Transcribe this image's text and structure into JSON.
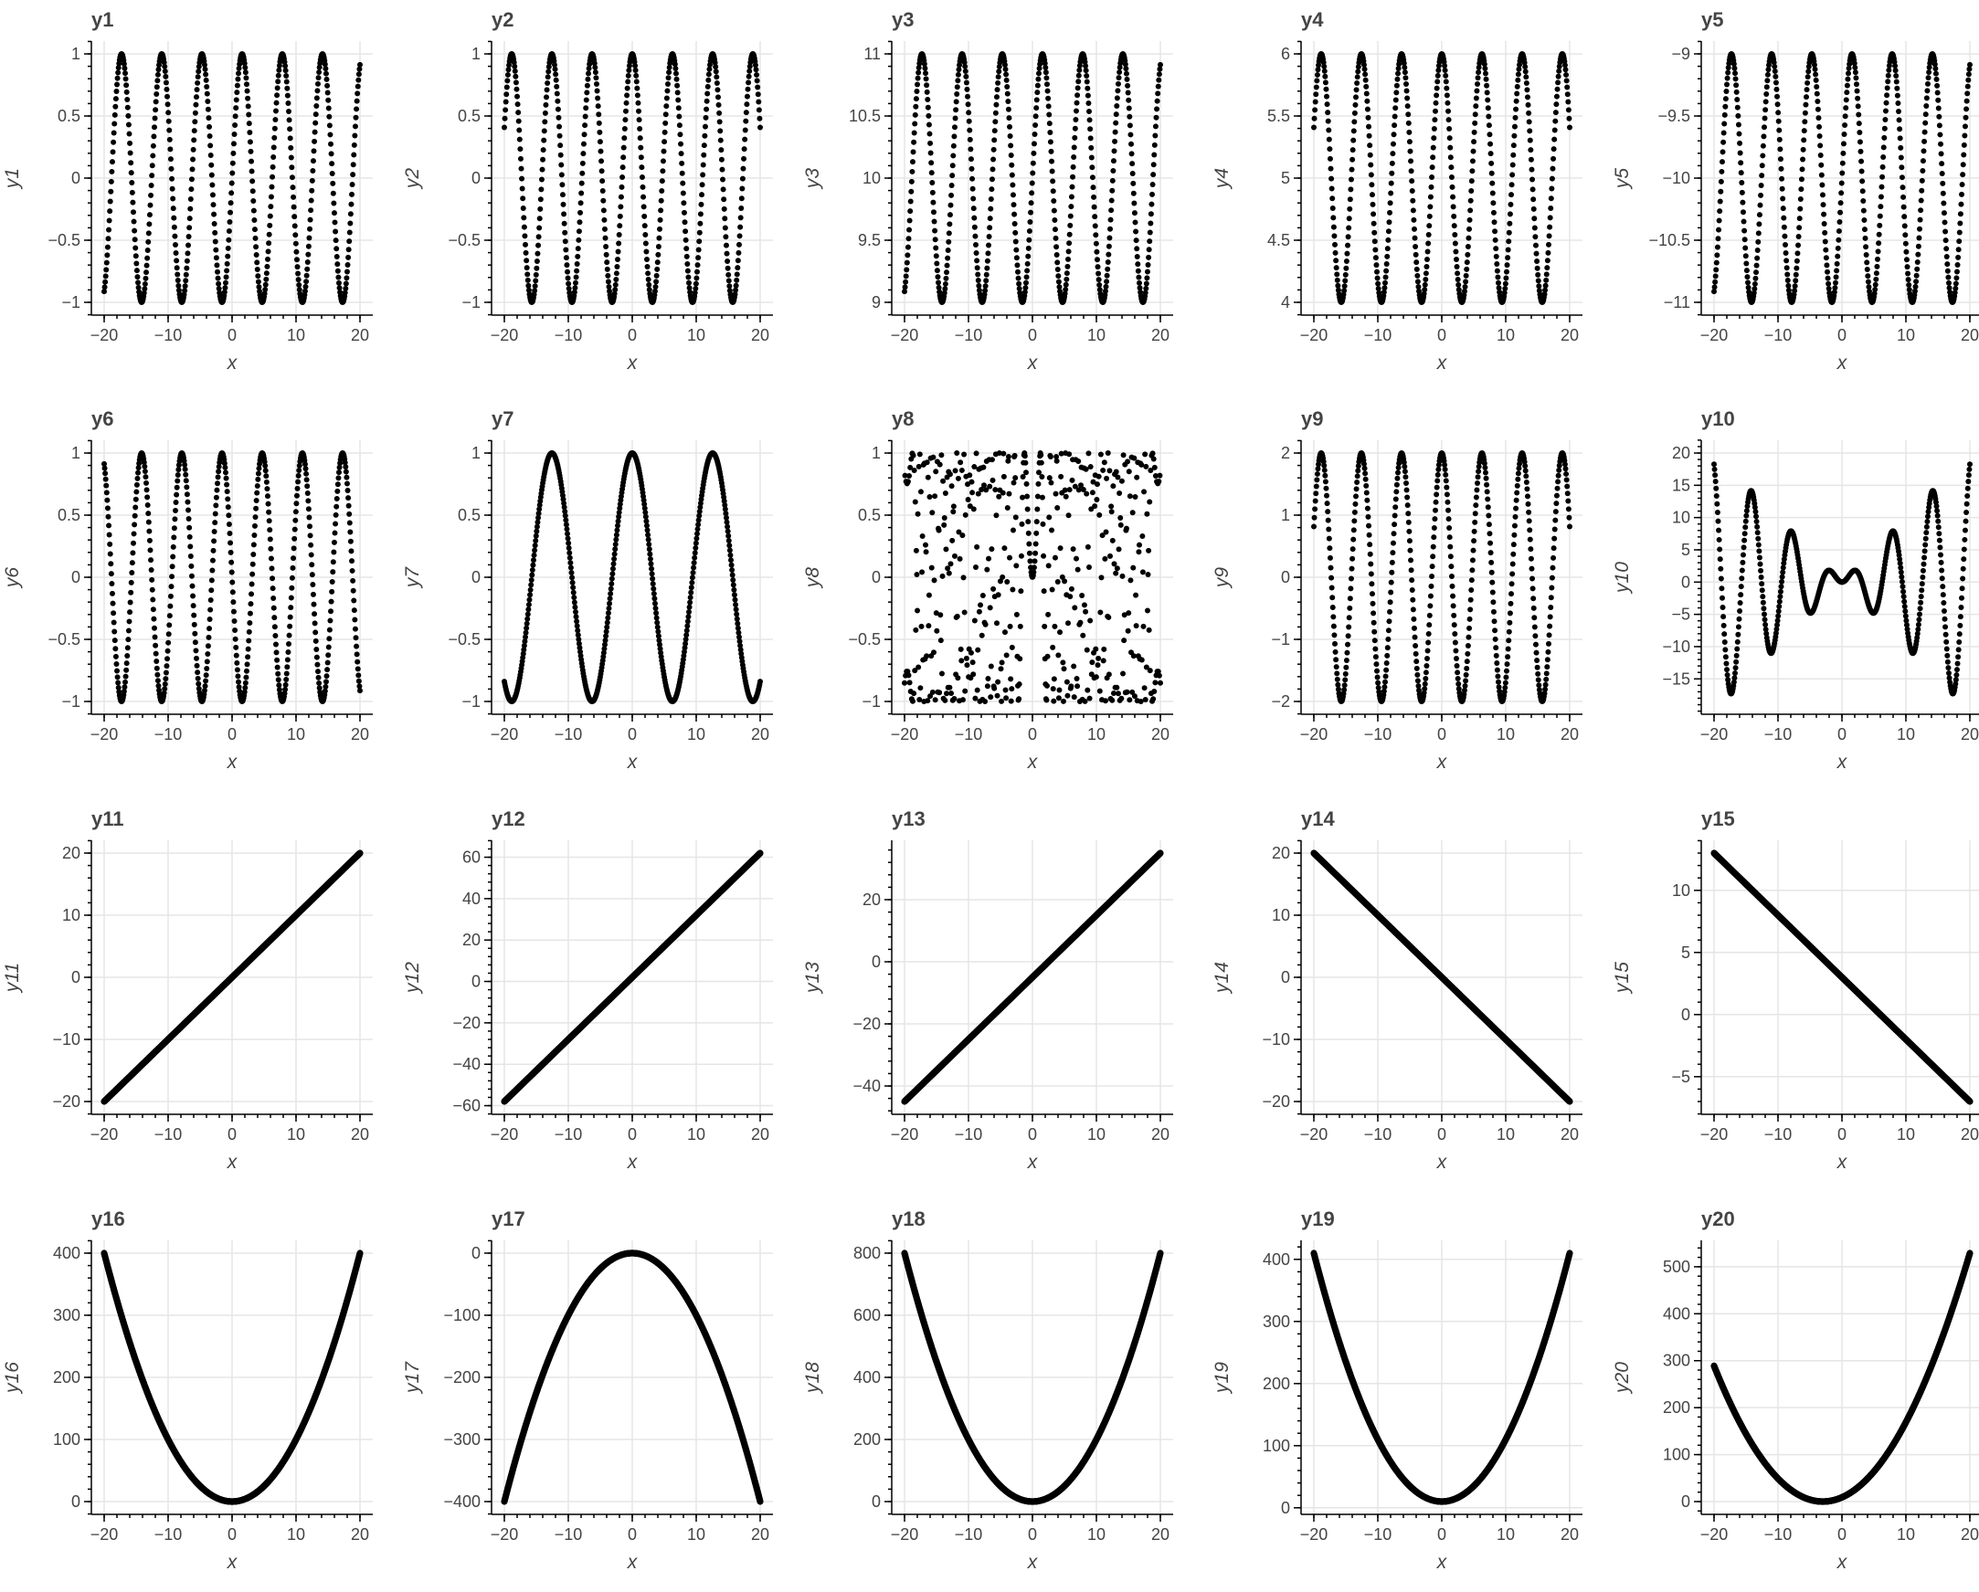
{
  "chart_data": [
    {
      "type": "scatter",
      "title": "y1",
      "xlabel": "x",
      "ylabel": "y1",
      "func": "sin",
      "xlim": [
        -20,
        20
      ],
      "ylim": [
        -1,
        1
      ],
      "xticks": [
        -20,
        -10,
        0,
        10,
        20
      ],
      "yticks": [
        -1,
        -0.5,
        0,
        0.5,
        1
      ],
      "ytick_labels": [
        "−1",
        "−0.5",
        "0",
        "0.5",
        "1"
      ]
    },
    {
      "type": "scatter",
      "title": "y2",
      "xlabel": "x",
      "ylabel": "y2",
      "func": "cos",
      "xlim": [
        -20,
        20
      ],
      "ylim": [
        -1,
        1
      ],
      "xticks": [
        -20,
        -10,
        0,
        10,
        20
      ],
      "yticks": [
        -1,
        -0.5,
        0,
        0.5,
        1
      ],
      "ytick_labels": [
        "−1",
        "−0.5",
        "0",
        "0.5",
        "1"
      ]
    },
    {
      "type": "scatter",
      "title": "y3",
      "xlabel": "x",
      "ylabel": "y3",
      "func": "sin+10",
      "xlim": [
        -20,
        20
      ],
      "ylim": [
        9,
        11
      ],
      "xticks": [
        -20,
        -10,
        0,
        10,
        20
      ],
      "yticks": [
        9,
        9.5,
        10,
        10.5,
        11
      ],
      "ytick_labels": [
        "9",
        "9.5",
        "10",
        "10.5",
        "11"
      ]
    },
    {
      "type": "scatter",
      "title": "y4",
      "xlabel": "x",
      "ylabel": "y4",
      "func": "cos+5",
      "xlim": [
        -20,
        20
      ],
      "ylim": [
        4,
        6
      ],
      "xticks": [
        -20,
        -10,
        0,
        10,
        20
      ],
      "yticks": [
        4,
        4.5,
        5,
        5.5,
        6
      ],
      "ytick_labels": [
        "4",
        "4.5",
        "5",
        "5.5",
        "6"
      ]
    },
    {
      "type": "scatter",
      "title": "y5",
      "xlabel": "x",
      "ylabel": "y5",
      "func": "sin-10",
      "xlim": [
        -20,
        20
      ],
      "ylim": [
        -11,
        -9
      ],
      "xticks": [
        -20,
        -10,
        0,
        10,
        20
      ],
      "yticks": [
        -11,
        -10.5,
        -10,
        -9.5,
        -9
      ],
      "ytick_labels": [
        "−11",
        "−10.5",
        "−10",
        "−9.5",
        "−9"
      ]
    },
    {
      "type": "scatter",
      "title": "y6",
      "xlabel": "x",
      "ylabel": "y6",
      "func": "-sin",
      "xlim": [
        -20,
        20
      ],
      "ylim": [
        -1,
        1
      ],
      "xticks": [
        -20,
        -10,
        0,
        10,
        20
      ],
      "yticks": [
        -1,
        -0.5,
        0,
        0.5,
        1
      ],
      "ytick_labels": [
        "−1",
        "−0.5",
        "0",
        "0.5",
        "1"
      ]
    },
    {
      "type": "scatter",
      "title": "y7",
      "xlabel": "x",
      "ylabel": "y7",
      "func": "cos(x/2)",
      "xlim": [
        -20,
        20
      ],
      "ylim": [
        -1,
        1
      ],
      "xticks": [
        -20,
        -10,
        0,
        10,
        20
      ],
      "yticks": [
        -1,
        -0.5,
        0,
        0.5,
        1
      ],
      "ytick_labels": [
        "−1",
        "−0.5",
        "0",
        "0.5",
        "1"
      ]
    },
    {
      "type": "scatter",
      "title": "y8",
      "xlabel": "x",
      "ylabel": "y8",
      "func": "sin(x^2)",
      "xlim": [
        -20,
        20
      ],
      "ylim": [
        -1,
        1
      ],
      "xticks": [
        -20,
        -10,
        0,
        10,
        20
      ],
      "yticks": [
        -1,
        -0.5,
        0,
        0.5,
        1
      ],
      "ytick_labels": [
        "−1",
        "−0.5",
        "0",
        "0.5",
        "1"
      ]
    },
    {
      "type": "scatter",
      "title": "y9",
      "xlabel": "x",
      "ylabel": "y9",
      "func": "2cos",
      "xlim": [
        -20,
        20
      ],
      "ylim": [
        -2,
        2
      ],
      "xticks": [
        -20,
        -10,
        0,
        10,
        20
      ],
      "yticks": [
        -2,
        -1,
        0,
        1,
        2
      ],
      "ytick_labels": [
        "−2",
        "−1",
        "0",
        "1",
        "2"
      ]
    },
    {
      "type": "scatter",
      "title": "y10",
      "xlabel": "x",
      "ylabel": "y10",
      "func": "x*sin(x)",
      "xlim": [
        -20,
        20
      ],
      "ylim": [
        -18.5,
        20
      ],
      "xticks": [
        -20,
        -10,
        0,
        10,
        20
      ],
      "yticks": [
        -15,
        -10,
        -5,
        0,
        5,
        10,
        15,
        20
      ],
      "ytick_labels": [
        "−15",
        "−10",
        "−5",
        "0",
        "5",
        "10",
        "15",
        "20"
      ]
    },
    {
      "type": "line",
      "title": "y11",
      "xlabel": "x",
      "ylabel": "y11",
      "func": "x",
      "xlim": [
        -20,
        20
      ],
      "ylim": [
        -20,
        20
      ],
      "xticks": [
        -20,
        -10,
        0,
        10,
        20
      ],
      "yticks": [
        -20,
        -10,
        0,
        10,
        20
      ],
      "ytick_labels": [
        "−20",
        "−10",
        "0",
        "10",
        "20"
      ]
    },
    {
      "type": "line",
      "title": "y12",
      "xlabel": "x",
      "ylabel": "y12",
      "func": "3x+2",
      "xlim": [
        -20,
        20
      ],
      "ylim": [
        -58,
        62
      ],
      "xticks": [
        -20,
        -10,
        0,
        10,
        20
      ],
      "yticks": [
        -60,
        -40,
        -20,
        0,
        20,
        40,
        60
      ],
      "ytick_labels": [
        "−60",
        "−40",
        "−20",
        "0",
        "20",
        "40",
        "60"
      ]
    },
    {
      "type": "line",
      "title": "y13",
      "xlabel": "x",
      "ylabel": "y13",
      "func": "2x-5",
      "xlim": [
        -20,
        20
      ],
      "ylim": [
        -45,
        35
      ],
      "xticks": [
        -20,
        -10,
        0,
        10,
        20
      ],
      "yticks": [
        -40,
        -20,
        0,
        20
      ],
      "ytick_labels": [
        "−40",
        "−20",
        "0",
        "20"
      ]
    },
    {
      "type": "line",
      "title": "y14",
      "xlabel": "x",
      "ylabel": "y14",
      "func": "-x",
      "xlim": [
        -20,
        20
      ],
      "ylim": [
        -20,
        20
      ],
      "xticks": [
        -20,
        -10,
        0,
        10,
        20
      ],
      "yticks": [
        -20,
        -10,
        0,
        10,
        20
      ],
      "ytick_labels": [
        "−20",
        "−10",
        "0",
        "10",
        "20"
      ]
    },
    {
      "type": "line",
      "title": "y15",
      "xlabel": "x",
      "ylabel": "y15",
      "func": "-0.5x+3",
      "xlim": [
        -20,
        20
      ],
      "ylim": [
        -7,
        13
      ],
      "xticks": [
        -20,
        -10,
        0,
        10,
        20
      ],
      "yticks": [
        -5,
        0,
        5,
        10
      ],
      "ytick_labels": [
        "−5",
        "0",
        "5",
        "10"
      ]
    },
    {
      "type": "line",
      "title": "y16",
      "xlabel": "x",
      "ylabel": "y16",
      "func": "x^2",
      "xlim": [
        -20,
        20
      ],
      "ylim": [
        0,
        400
      ],
      "xticks": [
        -20,
        -10,
        0,
        10,
        20
      ],
      "yticks": [
        0,
        100,
        200,
        300,
        400
      ],
      "ytick_labels": [
        "0",
        "100",
        "200",
        "300",
        "400"
      ]
    },
    {
      "type": "line",
      "title": "y17",
      "xlabel": "x",
      "ylabel": "y17",
      "func": "-x^2",
      "xlim": [
        -20,
        20
      ],
      "ylim": [
        -400,
        0
      ],
      "xticks": [
        -20,
        -10,
        0,
        10,
        20
      ],
      "yticks": [
        -400,
        -300,
        -200,
        -100,
        0
      ],
      "ytick_labels": [
        "−400",
        "−300",
        "−200",
        "−100",
        "0"
      ]
    },
    {
      "type": "line",
      "title": "y18",
      "xlabel": "x",
      "ylabel": "y18",
      "func": "2x^2",
      "xlim": [
        -20,
        20
      ],
      "ylim": [
        0,
        800
      ],
      "xticks": [
        -20,
        -10,
        0,
        10,
        20
      ],
      "yticks": [
        0,
        200,
        400,
        600,
        800
      ],
      "ytick_labels": [
        "0",
        "200",
        "400",
        "600",
        "800"
      ]
    },
    {
      "type": "line",
      "title": "y19",
      "xlabel": "x",
      "ylabel": "y19",
      "func": "x^2+10",
      "xlim": [
        -20,
        20
      ],
      "ylim": [
        10,
        410
      ],
      "xticks": [
        -20,
        -10,
        0,
        10,
        20
      ],
      "yticks": [
        0,
        100,
        200,
        300,
        400
      ],
      "ytick_labels": [
        "0",
        "100",
        "200",
        "300",
        "400"
      ]
    },
    {
      "type": "line",
      "title": "y20",
      "xlabel": "x",
      "ylabel": "y20",
      "func": "(x+3)^2",
      "xlim": [
        -20,
        20
      ],
      "ylim": [
        0,
        529
      ],
      "xticks": [
        -20,
        -10,
        0,
        10,
        20
      ],
      "yticks": [
        0,
        100,
        200,
        300,
        400,
        500
      ],
      "ytick_labels": [
        "0",
        "100",
        "200",
        "300",
        "400",
        "500"
      ]
    }
  ],
  "xtick_labels": [
    "−20",
    "−10",
    "0",
    "10",
    "20"
  ]
}
